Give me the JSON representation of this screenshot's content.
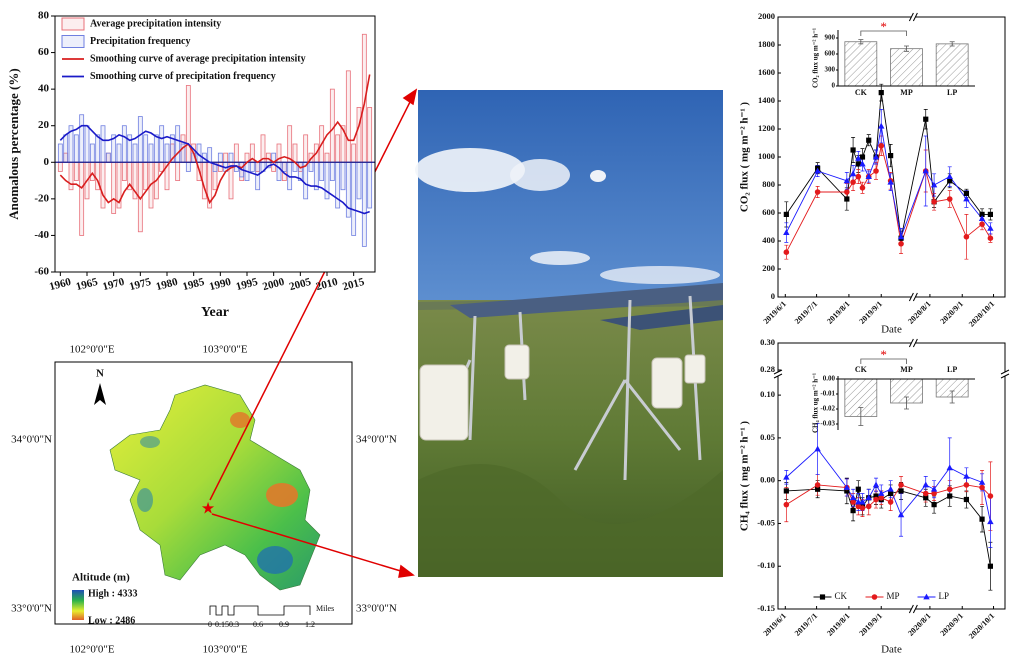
{
  "chart_data": [
    {
      "type": "bar_line",
      "y_label": "Anomalous percentage (%)",
      "x_label": "Year",
      "x": [
        1960,
        1961,
        1962,
        1963,
        1964,
        1965,
        1966,
        1967,
        1968,
        1969,
        1970,
        1971,
        1972,
        1973,
        1974,
        1975,
        1976,
        1977,
        1978,
        1979,
        1980,
        1981,
        1982,
        1983,
        1984,
        1985,
        1986,
        1987,
        1988,
        1989,
        1990,
        1991,
        1992,
        1993,
        1994,
        1995,
        1996,
        1997,
        1998,
        1999,
        2000,
        2001,
        2002,
        2003,
        2004,
        2005,
        2006,
        2007,
        2008,
        2009,
        2010,
        2011,
        2012,
        2013,
        2014,
        2015,
        2016,
        2017,
        2018
      ],
      "xlim": [
        1959,
        2019
      ],
      "xticks": [
        1960,
        1965,
        1970,
        1975,
        1980,
        1985,
        1990,
        1995,
        2000,
        2005,
        2010,
        2015
      ],
      "ylim": [
        -60,
        80
      ],
      "yticks": [
        80,
        60,
        40,
        20,
        0,
        -20,
        -40,
        -60
      ],
      "series": [
        {
          "name": "Average precipitation intensity",
          "type": "bar",
          "color": "#e8707a",
          "values": [
            -5,
            5,
            -15,
            -10,
            -40,
            -20,
            -10,
            -15,
            -25,
            5,
            -28,
            -25,
            -10,
            -15,
            -20,
            -38,
            -15,
            -25,
            -20,
            -5,
            -15,
            10,
            -10,
            15,
            42,
            10,
            -10,
            -20,
            -25,
            -15,
            -5,
            5,
            -20,
            10,
            -10,
            5,
            10,
            -5,
            15,
            5,
            -5,
            10,
            -10,
            20,
            10,
            -5,
            15,
            5,
            10,
            20,
            5,
            40,
            15,
            20,
            50,
            10,
            30,
            70,
            30
          ]
        },
        {
          "name": "Precipitation frequency",
          "type": "bar",
          "color": "#6f7fe0",
          "values": [
            10,
            15,
            20,
            15,
            26,
            20,
            10,
            15,
            20,
            5,
            15,
            10,
            20,
            15,
            10,
            25,
            15,
            10,
            15,
            20,
            10,
            15,
            20,
            10,
            -5,
            5,
            10,
            5,
            8,
            -5,
            5,
            -5,
            5,
            -5,
            -8,
            -10,
            -5,
            -15,
            -5,
            -3,
            5,
            -10,
            -5,
            -15,
            -5,
            -10,
            -20,
            -5,
            -15,
            -10,
            -20,
            -10,
            -25,
            -15,
            -30,
            -40,
            -20,
            -46,
            -25
          ]
        },
        {
          "name": "Smoothing curve of average precipitation intensity",
          "type": "line",
          "color": "#d81e1e",
          "values": [
            -7,
            -10,
            -12,
            -12,
            -14,
            -10,
            -6,
            -10,
            -18,
            -22,
            -20,
            -22,
            -16,
            -12,
            -16,
            -20,
            -16,
            -12,
            -10,
            -6,
            -2,
            2,
            5,
            8,
            10,
            5,
            -4,
            -14,
            -22,
            -18,
            -10,
            -5,
            -3,
            -2,
            -3,
            0,
            2,
            0,
            2,
            2,
            0,
            2,
            3,
            2,
            0,
            -3,
            -2,
            2,
            5,
            10,
            15,
            18,
            22,
            18,
            12,
            12,
            20,
            32,
            48
          ]
        },
        {
          "name": "Smoothing curve of precipitation frequency",
          "type": "line",
          "color": "#1a1ac8",
          "values": [
            12,
            15,
            17,
            18,
            20,
            20,
            17,
            14,
            12,
            12,
            13,
            15,
            14,
            12,
            13,
            15,
            17,
            16,
            14,
            13,
            14,
            13,
            12,
            11,
            10,
            7,
            4,
            2,
            0,
            -1,
            -2,
            -3,
            -2,
            -2,
            -4,
            -5,
            -6,
            -7,
            -5,
            -2,
            -1,
            -3,
            -6,
            -8,
            -8,
            -9,
            -12,
            -13,
            -13,
            -14,
            -16,
            -18,
            -20,
            -22,
            -25,
            -26,
            -27,
            -28,
            -27
          ]
        }
      ]
    },
    {
      "type": "line_error",
      "y_label": "CO₂ flux ( mg m⁻² h⁻¹ )",
      "x_label": "Date",
      "x": [
        "2019-06-02",
        "2019-07-02",
        "2019-07-30",
        "2019-08-05",
        "2019-08-10",
        "2019-08-14",
        "2019-08-20",
        "2019-08-27",
        "2019-09-01",
        "2019-09-10",
        "2019-09-20",
        "2020-07-28",
        "2020-08-05",
        "2020-08-20",
        "2020-09-05",
        "2020-09-20",
        "2020-09-28"
      ],
      "xlim": [
        [
          "2019-05-25",
          "2019-09-28"
        ],
        [
          "2020-07-20",
          "2020-10-12"
        ]
      ],
      "xticks": [
        {
          "value": "2019-06-01",
          "label": "2019/6/1"
        },
        {
          "value": "2019-07-01",
          "label": "2019/7/1"
        },
        {
          "value": "2019-08-01",
          "label": "2019/8/1"
        },
        {
          "value": "2019-09-01",
          "label": "2019/9/1"
        },
        {
          "value": "2020-08-01",
          "label": "2020/8/1"
        },
        {
          "value": "2020-09-01",
          "label": "2020/9/1"
        },
        {
          "value": "2020-10-01",
          "label": "2020/10/1"
        }
      ],
      "ylim": [
        0,
        2000
      ],
      "yticks": [
        0,
        200,
        400,
        600,
        800,
        1000,
        1200,
        1400,
        1600,
        1800,
        2000
      ],
      "series": [
        {
          "name": "CK",
          "color": "#000000",
          "marker": "square",
          "values": [
            590,
            920,
            700,
            1050,
            950,
            1000,
            1120,
            1000,
            1460,
            1010,
            420,
            1270,
            680,
            830,
            740,
            590,
            590
          ],
          "errors": [
            90,
            40,
            80,
            90,
            60,
            60,
            40,
            50,
            60,
            80,
            50,
            70,
            40,
            50,
            30,
            40,
            40
          ]
        },
        {
          "name": "MP",
          "color": "#e31a1c",
          "marker": "circle",
          "values": [
            320,
            750,
            750,
            820,
            860,
            780,
            860,
            900,
            1080,
            830,
            380,
            900,
            680,
            700,
            430,
            520,
            420
          ],
          "errors": [
            50,
            40,
            60,
            60,
            50,
            40,
            50,
            60,
            70,
            60,
            70,
            150,
            60,
            60,
            160,
            40,
            30
          ]
        },
        {
          "name": "LP",
          "color": "#1a1aff",
          "marker": "triangle",
          "values": [
            460,
            900,
            830,
            880,
            990,
            950,
            860,
            1000,
            1220,
            820,
            430,
            900,
            800,
            860,
            700,
            560,
            490
          ],
          "errors": [
            70,
            40,
            60,
            60,
            50,
            50,
            40,
            50,
            120,
            60,
            60,
            250,
            80,
            70,
            60,
            40,
            40
          ]
        }
      ]
    },
    {
      "type": "line_error",
      "y_label": "CH₄ flux ( mg m⁻² h⁻¹ )",
      "x_label": "Date",
      "legend": "lower center",
      "x": [
        "2019-06-02",
        "2019-07-02",
        "2019-07-30",
        "2019-08-05",
        "2019-08-10",
        "2019-08-14",
        "2019-08-20",
        "2019-08-27",
        "2019-09-01",
        "2019-09-10",
        "2019-09-20",
        "2020-07-28",
        "2020-08-05",
        "2020-08-20",
        "2020-09-05",
        "2020-09-20",
        "2020-09-28"
      ],
      "xlim": [
        [
          "2019-05-25",
          "2019-09-28"
        ],
        [
          "2020-07-20",
          "2020-10-12"
        ]
      ],
      "xticks": [
        {
          "value": "2019-06-01",
          "label": "2019/6/1"
        },
        {
          "value": "2019-07-01",
          "label": "2019/7/1"
        },
        {
          "value": "2019-08-01",
          "label": "2019/8/1"
        },
        {
          "value": "2019-09-01",
          "label": "2019/9/1"
        },
        {
          "value": "2020-08-01",
          "label": "2020/8/1"
        },
        {
          "value": "2020-09-01",
          "label": "2020/9/1"
        },
        {
          "value": "2020-10-01",
          "label": "2020/10/1"
        }
      ],
      "ylim": [
        [
          -0.15,
          0.12
        ],
        [
          0.28,
          0.3
        ]
      ],
      "yticks": [
        {
          "value": 0.3,
          "label": "0.30"
        },
        {
          "value": 0.28,
          "label": "0.28"
        },
        {
          "value": 0.1,
          "label": "0.10"
        },
        0.05,
        {
          "value": 0,
          "label": "0.00"
        },
        -0.05,
        {
          "value": -0.1,
          "label": "-0.10"
        },
        -0.15
      ],
      "series": [
        {
          "name": "CK",
          "color": "#000000",
          "marker": "square",
          "values": [
            -0.012,
            -0.01,
            -0.012,
            -0.035,
            -0.01,
            -0.03,
            -0.02,
            -0.018,
            -0.022,
            -0.015,
            -0.012,
            -0.02,
            -0.028,
            -0.018,
            -0.022,
            -0.045,
            -0.1
          ],
          "errors": [
            0.01,
            0.01,
            0.015,
            0.012,
            0.01,
            0.01,
            0.01,
            0.01,
            0.01,
            0.01,
            0.01,
            0.01,
            0.01,
            0.012,
            0.01,
            0.015,
            0.028
          ]
        },
        {
          "name": "MP",
          "color": "#e31a1c",
          "marker": "circle",
          "values": [
            -0.028,
            -0.005,
            -0.008,
            -0.025,
            -0.03,
            -0.032,
            -0.03,
            -0.022,
            -0.02,
            -0.025,
            -0.005,
            -0.015,
            -0.015,
            -0.01,
            -0.005,
            -0.008,
            -0.018
          ],
          "errors": [
            0.02,
            0.012,
            0.01,
            0.01,
            0.01,
            0.01,
            0.01,
            0.01,
            0.008,
            0.01,
            0.01,
            0.01,
            0.008,
            0.01,
            0.008,
            0.02,
            0.04
          ]
        },
        {
          "name": "LP",
          "color": "#1a1aff",
          "marker": "triangle",
          "values": [
            0.004,
            0.037,
            -0.008,
            -0.02,
            -0.025,
            -0.025,
            -0.02,
            -0.005,
            -0.015,
            -0.01,
            -0.04,
            -0.005,
            -0.01,
            0.015,
            0.005,
            -0.002,
            -0.048
          ],
          "errors": [
            0.008,
            0.03,
            0.01,
            0.01,
            0.01,
            0.01,
            0.01,
            0.008,
            0.01,
            0.01,
            0.025,
            0.01,
            0.01,
            0.035,
            0.01,
            0.01,
            0.03
          ]
        }
      ]
    },
    {
      "type": "bar_error",
      "y_label": "CO₂ flux ug m⁻² h⁻¹",
      "annotation": "*",
      "categories": [
        "CK",
        "MP",
        "LP"
      ],
      "values": [
        830,
        700,
        790
      ],
      "errors": [
        40,
        50,
        40
      ],
      "ylim": [
        0,
        1050
      ],
      "yticks": [
        0,
        300,
        600,
        900
      ]
    },
    {
      "type": "bar_error",
      "y_label": "CH₄ flux ug m⁻² h⁻¹",
      "annotation": "*",
      "categories": [
        "CK",
        "MP",
        "LP"
      ],
      "values": [
        -0.025,
        -0.016,
        -0.012
      ],
      "errors": [
        0.006,
        0.004,
        0.004
      ],
      "ylim": [
        -0.034,
        0.002
      ],
      "yticks": [
        {
          "value": 0,
          "label": "0.00"
        },
        -0.01,
        -0.02,
        -0.03
      ]
    }
  ],
  "map": {
    "longitude_labels": [
      "102°0'0\"E",
      "103°0'0\"E"
    ],
    "latitude_labels": [
      "34°0'0\"N",
      "33°0'0\"N"
    ],
    "north": "N",
    "legend_title": "Altitude (m)",
    "high": "High : 4333",
    "low": "Low : 2486",
    "scale_labels": [
      "0",
      "0.15",
      "0.3",
      "0.6",
      "0.9",
      "1.2"
    ],
    "scale_unit": "Miles"
  }
}
